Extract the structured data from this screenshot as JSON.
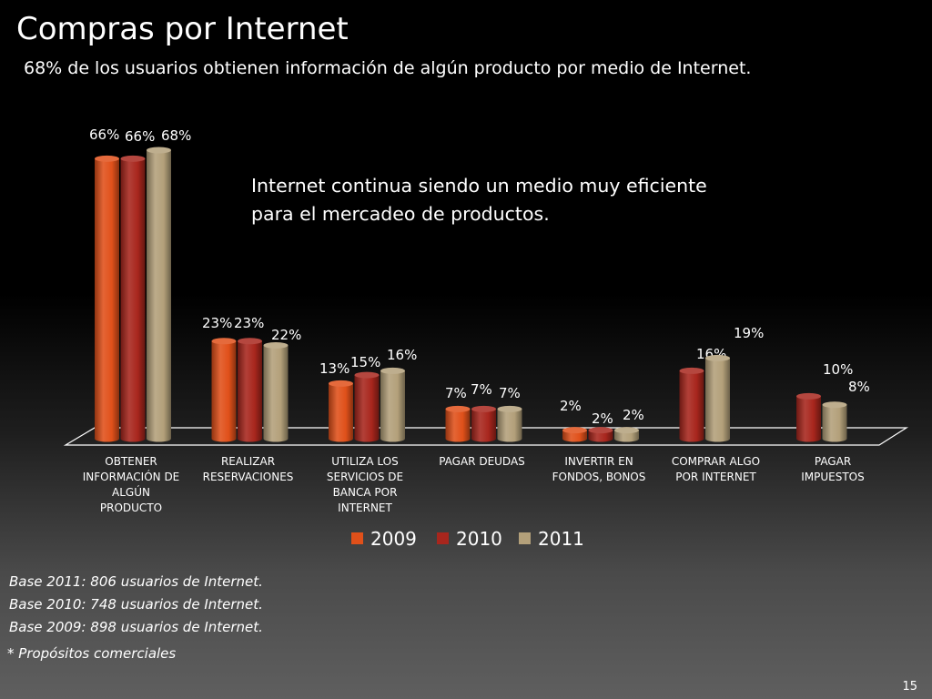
{
  "title": "Compras por Internet",
  "subtitle": "68% de los usuarios  obtienen información de algún producto por medio de Internet.",
  "annotation": "Internet continua siendo un medio muy eficiente para el mercadeo de productos.",
  "base_notes": [
    "Base 2011:  806 usuarios de Internet.",
    "Base 2010: 748 usuarios de Internet.",
    "Base 2009: 898 usuarios de Internet."
  ],
  "footnote": "* Propósitos comerciales",
  "page_number": "15",
  "colors": {
    "2009": "#e0501a",
    "2010": "#a8261d",
    "2011": "#b3a07a",
    "floor": "#ffffff"
  },
  "chart_data": {
    "type": "bar",
    "title": "",
    "xlabel": "",
    "ylabel": "",
    "ylim": [
      0,
      70
    ],
    "legend_position": "bottom-center",
    "categories": [
      [
        "OBTENER",
        "INFORMACIÓN DE",
        "ALGÚN",
        "PRODUCTO"
      ],
      [
        "REALIZAR",
        "RESERVACIONES"
      ],
      [
        "UTILIZA LOS",
        "SERVICIOS DE",
        "BANCA POR",
        "INTERNET"
      ],
      [
        "PAGAR DEUDAS"
      ],
      [
        "INVERTIR EN",
        "FONDOS, BONOS"
      ],
      [
        "COMPRAR  ALGO",
        "POR INTERNET"
      ],
      [
        "PAGAR",
        "IMPUESTOS"
      ]
    ],
    "series": [
      {
        "name": "2009",
        "values": [
          66,
          23,
          13,
          7,
          2,
          null,
          null
        ],
        "labels": [
          "66%",
          "23%",
          "13%",
          "7%",
          "2%",
          "",
          ""
        ]
      },
      {
        "name": "2010",
        "values": [
          66,
          23,
          15,
          7,
          2,
          16,
          10
        ],
        "labels": [
          "66%",
          "23%",
          "15%",
          "7%",
          "2%",
          "16%",
          "10%"
        ]
      },
      {
        "name": "2011",
        "values": [
          68,
          22,
          16,
          7,
          2,
          19,
          8
        ],
        "labels": [
          "68%",
          "22%",
          "16%",
          "7%",
          "2%",
          "19%",
          "8%"
        ]
      }
    ]
  }
}
